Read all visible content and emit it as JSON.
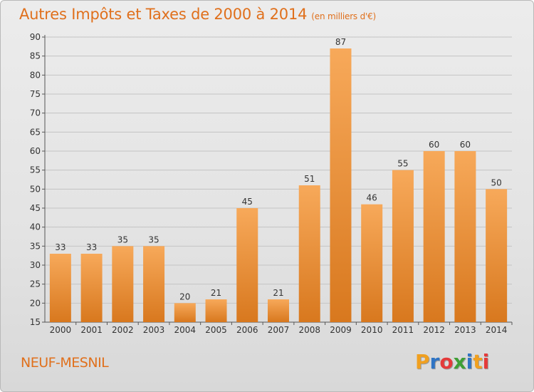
{
  "header": {
    "title": "Autres Impôts et Taxes de 2000 à 2014",
    "unit": "(en milliers d'€)"
  },
  "footer": {
    "town": "NEUF-MESNIL",
    "brand": {
      "letters": [
        "P",
        "r",
        "o",
        "x",
        "i",
        "t",
        "i"
      ],
      "colors": [
        "#f0a020",
        "#2f74c4",
        "#e43a3a",
        "#3f9f35",
        "#2f74c4",
        "#f0a020",
        "#e43a3a"
      ]
    }
  },
  "chart_data": {
    "type": "bar",
    "title": "Autres Impôts et Taxes de 2000 à 2014",
    "subtitle": "(en milliers d'€)",
    "categories": [
      "2000",
      "2001",
      "2002",
      "2003",
      "2004",
      "2005",
      "2006",
      "2007",
      "2008",
      "2009",
      "2010",
      "2011",
      "2012",
      "2013",
      "2014"
    ],
    "values": [
      33,
      33,
      35,
      35,
      20,
      21,
      45,
      21,
      51,
      87,
      46,
      55,
      60,
      60,
      50
    ],
    "ylim": [
      15,
      90
    ],
    "yticks": [
      15,
      20,
      25,
      30,
      35,
      40,
      45,
      50,
      55,
      60,
      65,
      70,
      75,
      80,
      85,
      90
    ],
    "grid": true,
    "bar_color_top": "#f7a95a",
    "bar_color_bottom": "#d8781e",
    "legend": "none"
  }
}
